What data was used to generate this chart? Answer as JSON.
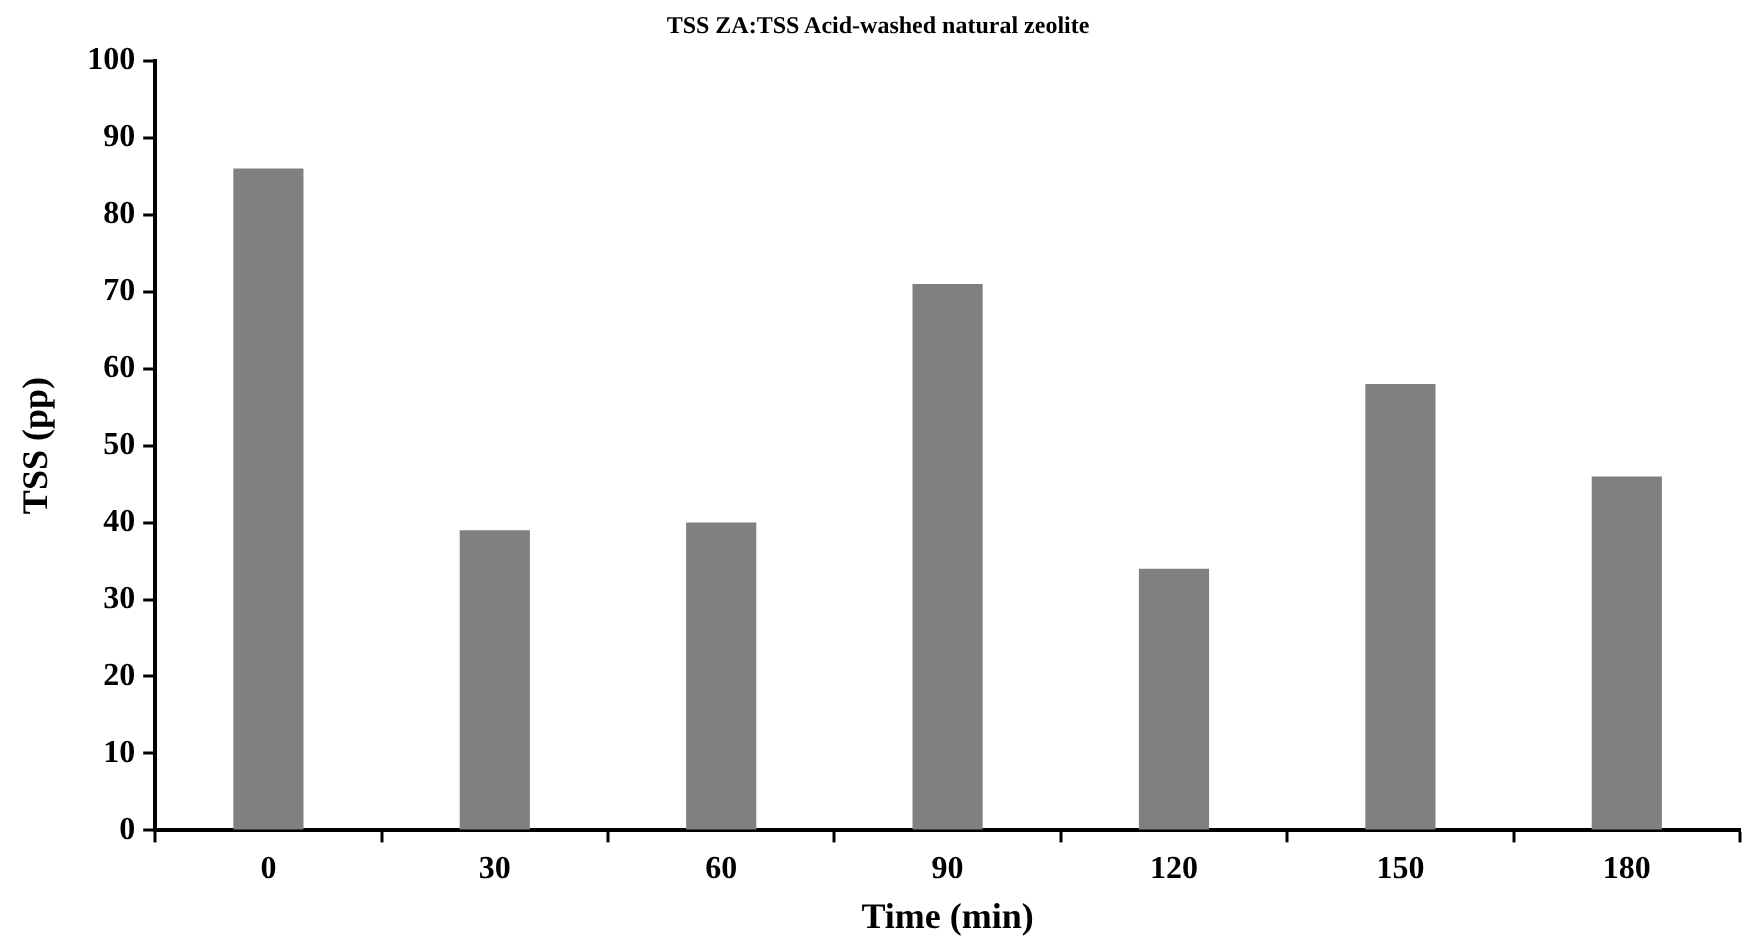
{
  "chart_data": {
    "type": "bar",
    "title": "TSS ZA:TSS Acid-washed natural zeolite",
    "xlabel": "Time (min)",
    "ylabel": "TSS (pp)",
    "categories": [
      "0",
      "30",
      "60",
      "90",
      "120",
      "150",
      "180"
    ],
    "values": [
      86,
      39,
      40,
      71,
      34,
      58,
      46
    ],
    "color": "#808080",
    "ylim": [
      0,
      100
    ],
    "yticks": [
      0,
      10,
      20,
      30,
      40,
      50,
      60,
      70,
      80,
      90,
      100
    ],
    "grid": false,
    "legend": false
  }
}
